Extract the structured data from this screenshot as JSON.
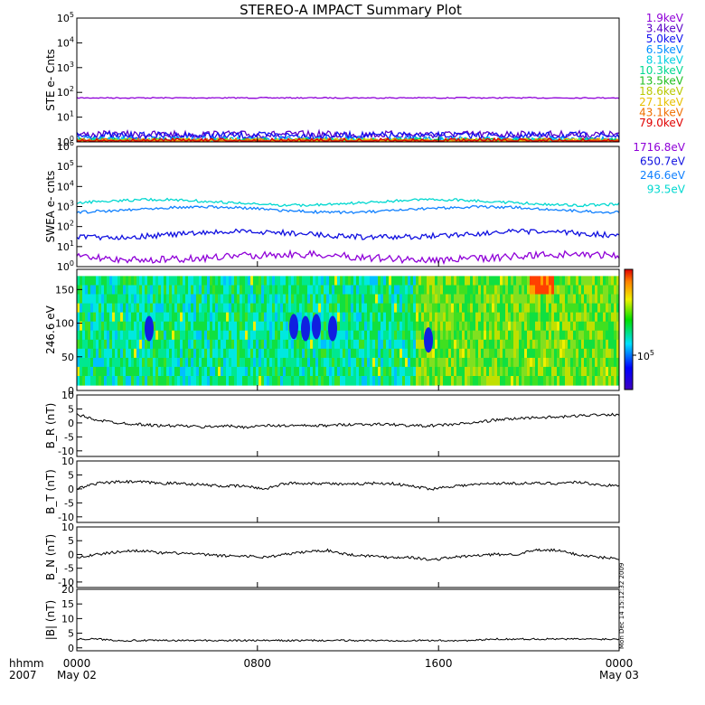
{
  "title": "STEREO-A IMPACT Summary Plot",
  "x_axis": {
    "row1": [
      "0000",
      "0800",
      "1600",
      "0000"
    ],
    "row2": [
      "May 02",
      "May 03"
    ],
    "left_label1": "hhmm",
    "left_label2": "2007"
  },
  "side_stamp": "Mon Dec 14 15:12:32 2009",
  "chart_data": [
    {
      "type": "line",
      "panel": "ste",
      "ylabel": "STE e- Cnts",
      "yscale": "log",
      "ylim": [
        1,
        100000
      ],
      "yticks": [
        "10^0",
        "10^1",
        "10^2",
        "10^3",
        "10^4",
        "10^5"
      ],
      "series": [
        {
          "name": "1.9keV",
          "color": "#8f00d8",
          "level": 60
        },
        {
          "name": "3.4keV",
          "color": "#5a00c8",
          "level": 2
        },
        {
          "name": "5.0keV",
          "color": "#1010f0",
          "level": 1.8
        },
        {
          "name": "6.5keV",
          "color": "#0090ff",
          "level": 1.2
        },
        {
          "name": "8.1keV",
          "color": "#00d0e0",
          "level": 1.1
        },
        {
          "name": "10.3keV",
          "color": "#00d890",
          "level": 1.05
        },
        {
          "name": "13.5keV",
          "color": "#20c020",
          "level": 1.0
        },
        {
          "name": "18.6keV",
          "color": "#b8c800",
          "level": 1.0
        },
        {
          "name": "27.1keV",
          "color": "#e8c000",
          "level": 1.0
        },
        {
          "name": "43.1keV",
          "color": "#f07000",
          "level": 1.0
        },
        {
          "name": "79.0keV",
          "color": "#e00000",
          "level": 1.0
        }
      ]
    },
    {
      "type": "line",
      "panel": "swea",
      "ylabel": "SWEA e- cnts",
      "yscale": "log",
      "ylim": [
        1,
        1000000
      ],
      "yticks": [
        "10^0",
        "10^1",
        "10^2",
        "10^3",
        "10^4",
        "10^5",
        "10^6"
      ],
      "series": [
        {
          "name": "1716.8eV",
          "color": "#8f00d8",
          "level": 3
        },
        {
          "name": "650.7eV",
          "color": "#1010e0",
          "level": 40
        },
        {
          "name": "246.6eV",
          "color": "#1080ff",
          "level": 700
        },
        {
          "name": "93.5eV",
          "color": "#00d8d0",
          "level": 1600
        }
      ]
    },
    {
      "type": "heatmap",
      "panel": "pad",
      "ylabel": "246.6 eV",
      "ylim": [
        0,
        180
      ],
      "yticks": [
        0,
        50,
        100,
        150
      ],
      "colorbar_label": "10^5"
    },
    {
      "type": "line",
      "panel": "br",
      "ylabel": "B_R (nT)",
      "ylim": [
        -12,
        10
      ],
      "yticks": [
        -10,
        -5,
        0,
        5,
        10
      ],
      "series": [
        {
          "color": "#000000",
          "values": [
            3,
            1,
            0,
            -0.5,
            -1,
            -1,
            -1.5,
            -1,
            -1.5,
            -1,
            -1,
            -1,
            -1,
            -0.5,
            -0.5,
            -0.5,
            -1,
            -1,
            -0.5,
            0,
            1,
            1.5,
            2,
            2,
            2.5,
            3,
            3
          ]
        }
      ]
    },
    {
      "type": "line",
      "panel": "bt",
      "ylabel": "B_T (nT)",
      "ylim": [
        -12,
        10
      ],
      "yticks": [
        -10,
        -5,
        0,
        5,
        10
      ],
      "series": [
        {
          "color": "#000000",
          "values": [
            0,
            2,
            2.5,
            2.5,
            2,
            2,
            1.5,
            1,
            1,
            0,
            2,
            2,
            2,
            1.5,
            2,
            2,
            1,
            0,
            1,
            1.5,
            2,
            2,
            2,
            2,
            2.5,
            1.5,
            1
          ]
        }
      ]
    },
    {
      "type": "line",
      "panel": "bn",
      "ylabel": "B_N (nT)",
      "ylim": [
        -12,
        10
      ],
      "yticks": [
        -10,
        -5,
        0,
        5,
        10
      ],
      "series": [
        {
          "color": "#000000",
          "values": [
            -1,
            0,
            1,
            1.5,
            0.5,
            0.5,
            0,
            -0.5,
            -0.5,
            -1,
            0,
            1,
            1.5,
            0,
            -0.5,
            -1,
            -1,
            -2,
            -1,
            -0.5,
            0,
            0,
            1.5,
            1.5,
            0,
            -1,
            -1.5
          ]
        }
      ]
    },
    {
      "type": "line",
      "panel": "bmag",
      "ylabel": "|B| (nT)",
      "ylim": [
        -1,
        20
      ],
      "yticks": [
        0,
        5,
        10,
        15,
        20
      ],
      "series": [
        {
          "color": "#000000",
          "values": [
            3,
            3,
            2.5,
            2.5,
            2.5,
            2.5,
            2.5,
            2.5,
            2.5,
            2.5,
            2.5,
            2.5,
            2.5,
            2.5,
            2.5,
            2.5,
            2.5,
            2.5,
            2.5,
            2.5,
            3,
            3,
            3,
            3,
            3,
            3,
            3
          ]
        }
      ]
    }
  ]
}
